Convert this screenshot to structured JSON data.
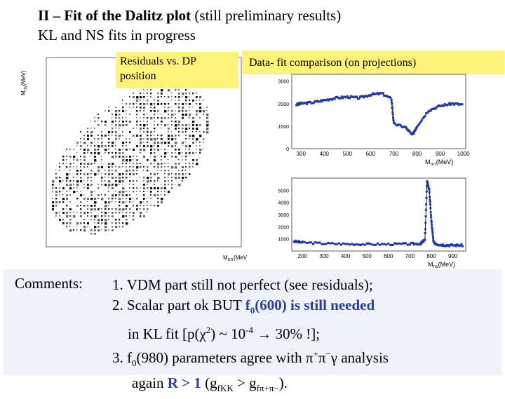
{
  "title": {
    "line1_bold": "II – Fit of the Dalitz plot",
    "line1_rest": " (still preliminary results)",
    "line2": "KL and NS fits in progress"
  },
  "residuals_callout": "Residuals vs. DP position",
  "datafit_callout": "Data- fit comparison (on projections)",
  "scatter": {
    "ylabel": "M",
    "ylabel_sub": "πγ",
    "ylabel_unit": "(MeV)",
    "xlabel": "M",
    "xlabel_sub": "ππ",
    "xlabel_unit": "(MeV)"
  },
  "top_projection": {
    "xlabel": "M",
    "xlabel_sub": "ππ",
    "xlabel_unit": "(MeV)",
    "x_ticks": [
      "300",
      "400",
      "500",
      "600",
      "700",
      "800",
      "900",
      "1000"
    ],
    "y_ticks": [
      "0",
      "1000",
      "2000",
      "3000"
    ]
  },
  "bottom_projection": {
    "xlabel": "M",
    "xlabel_sub": "πγ",
    "xlabel_unit": "(MeV)",
    "x_ticks": [
      "200",
      "300",
      "400",
      "500",
      "600",
      "700",
      "800",
      "900"
    ],
    "y_ticks": [
      "1000",
      "2000",
      "3000",
      "4000",
      "5000"
    ]
  },
  "chart_data": [
    {
      "type": "scatter",
      "title": "",
      "xlabel": "Mππ (MeV)",
      "ylabel": "Mπγ (MeV)"
    },
    {
      "type": "line",
      "title": "",
      "xlabel": "Mππ (MeV)",
      "ylabel": "",
      "xlim": [
        260,
        1010
      ],
      "ylim": [
        0,
        3300
      ],
      "x": [
        280,
        300,
        350,
        400,
        450,
        500,
        550,
        600,
        650,
        690,
        700,
        750,
        780,
        800,
        850,
        900,
        950,
        1000
      ],
      "values": [
        1950,
        2000,
        2050,
        2150,
        2250,
        2300,
        2250,
        2400,
        2450,
        2200,
        1100,
        950,
        600,
        1000,
        1700,
        1900,
        2000,
        1950
      ]
    },
    {
      "type": "line",
      "title": "",
      "xlabel": "Mπγ (MeV)",
      "ylabel": "",
      "xlim": [
        150,
        960
      ],
      "ylim": [
        0,
        6000
      ],
      "x": [
        160,
        200,
        300,
        400,
        500,
        600,
        700,
        750,
        770,
        780,
        790,
        800,
        810,
        830,
        860,
        900,
        950
      ],
      "values": [
        800,
        700,
        620,
        580,
        560,
        560,
        580,
        620,
        900,
        5800,
        5000,
        2500,
        700,
        550,
        500,
        480,
        470
      ]
    }
  ],
  "comments": {
    "label": "Comments:",
    "item1": "1. VDM part still not perfect (see residuals);",
    "item2_pre": "2. Scalar part ok BUT ",
    "item2_f0": "f",
    "item2_f0_sub": "0",
    "item2_f0_mass": "(600)",
    "item2_tail": " is still needed",
    "item3_pre": "in KL fit [p(χ",
    "item3_sup": "2",
    "item3_mid": ") ~ 10",
    "item3_exp": "-4",
    "item3_arrow": " → ",
    "item3_post": "30% !];",
    "item4_pre": "3. f",
    "item4_sub": "0",
    "item4_post": "(980) parameters agree with π",
    "item4_plus": "+",
    "item4_pi": "π",
    "item4_minus": "−",
    "item4_gamma": "γ analysis",
    "item5_pre": "again ",
    "item5_R": "R > 1",
    "item5_mid": " (g",
    "item5_sub1": "fKK",
    "item5_mid2": " > g",
    "item5_sub2": "fπ+π−",
    "item5_end": ")."
  }
}
